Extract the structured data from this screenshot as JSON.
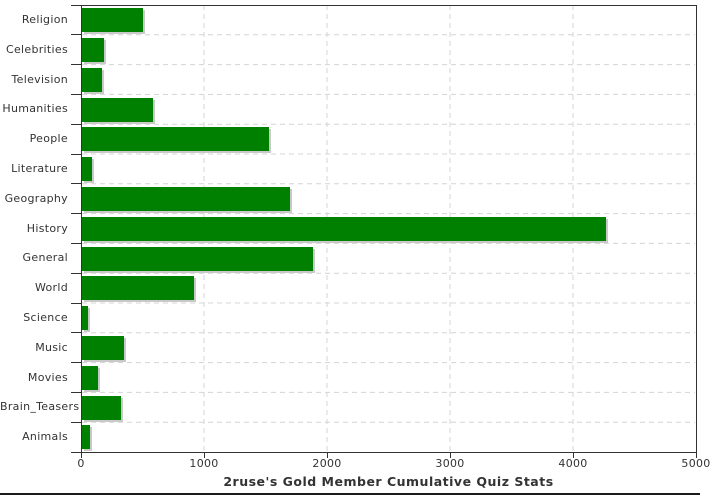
{
  "chart_data": {
    "type": "bar",
    "orientation": "horizontal",
    "title": "2ruse's Gold Member Cumulative Quiz Stats",
    "categories": [
      "Religion",
      "Celebrities",
      "Television",
      "Humanities",
      "People",
      "Literature",
      "Geography",
      "History",
      "General",
      "World",
      "Science",
      "Music",
      "Movies",
      "Brain_Teasers",
      "Animals"
    ],
    "values": [
      500,
      190,
      170,
      585,
      1530,
      90,
      1700,
      4270,
      1890,
      915,
      60,
      350,
      135,
      325,
      75
    ],
    "xlabel": "",
    "ylabel": "",
    "xlim": [
      0,
      5000
    ],
    "x_ticks": [
      "0",
      "1000",
      "2000",
      "3000",
      "4000",
      "5000"
    ],
    "x_tick_values": [
      0,
      1000,
      2000,
      3000,
      4000,
      5000
    ],
    "grid": "dashed",
    "legend": "none",
    "colors": {
      "bar": "#008000",
      "bar_shadow": "#c9c9c9",
      "gridline": "#d4d4d4",
      "axis": "#333333",
      "text": "#333333",
      "frame": "#1a1a1a",
      "background": "#ffffff"
    }
  }
}
